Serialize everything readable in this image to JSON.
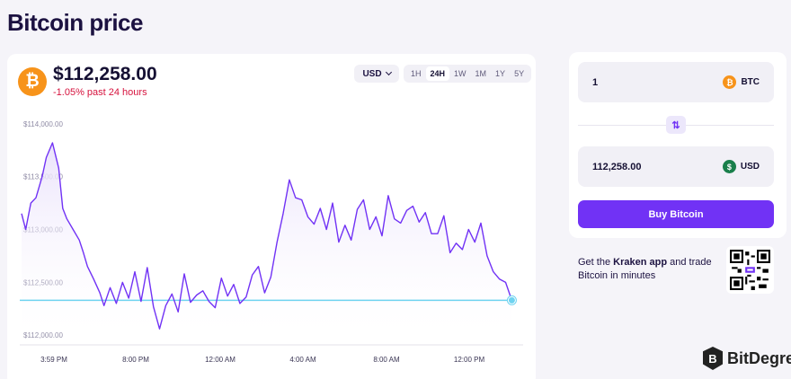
{
  "page": {
    "title": "Bitcoin price"
  },
  "ticker": {
    "coin_symbol_glyph": "₿",
    "price": "$112,258.00",
    "change": "-1.05% past 24 hours",
    "icon": "bitcoin-icon"
  },
  "controls": {
    "currency": "USD",
    "ranges": [
      "1H",
      "24H",
      "1W",
      "1M",
      "1Y",
      "5Y"
    ],
    "active_range": "24H"
  },
  "chart_data": {
    "type": "area",
    "y_tick_labels": [
      "$114,000.00",
      "$113,500.00",
      "$113,000.00",
      "$112,500.00",
      "$112,000.00"
    ],
    "y_ticks": [
      114000,
      113500,
      113000,
      112500,
      112000
    ],
    "ylim": [
      111900,
      114100
    ],
    "x_tick_labels": [
      "3:59 PM",
      "8:00 PM",
      "12:00 AM",
      "4:00 AM",
      "8:00 AM",
      "12:00 PM"
    ],
    "xlim": [
      0,
      24
    ],
    "reference_value": 112330,
    "line_color": "#7132f5",
    "fill_color": "#e9e1fb",
    "reference_color": "#6fd3f0",
    "series": [
      {
        "x": [
          0,
          0.2,
          0.45,
          0.7,
          1.0,
          1.2,
          1.5,
          1.8,
          2.0,
          2.2,
          2.5,
          2.8,
          3.0,
          3.2,
          3.5,
          3.8,
          4.0,
          4.3,
          4.6,
          4.9,
          5.2,
          5.5,
          5.8,
          6.1,
          6.4,
          6.7,
          7.0,
          7.3,
          7.6,
          7.9,
          8.2,
          8.5,
          8.8,
          9.1,
          9.4,
          9.7,
          10.0,
          10.3,
          10.6,
          10.9,
          11.2,
          11.5,
          11.8,
          12.1,
          12.4,
          12.7,
          13.0,
          13.3,
          13.6,
          13.9,
          14.2,
          14.5,
          14.8,
          15.1,
          15.4,
          15.7,
          16.0,
          16.3,
          16.6,
          16.9,
          17.2,
          17.5,
          17.8,
          18.1,
          18.4,
          18.7,
          19.0,
          19.3,
          19.6,
          19.9,
          20.2,
          20.5,
          20.8,
          21.1,
          21.4,
          21.7,
          22.0,
          22.3,
          22.6,
          22.9,
          23.2,
          23.5,
          23.8
        ],
        "y": [
          113150,
          113000,
          113250,
          113300,
          113500,
          113680,
          113820,
          113580,
          113200,
          113100,
          113000,
          112900,
          112780,
          112650,
          112530,
          112400,
          112280,
          112450,
          112300,
          112500,
          112350,
          112600,
          112320,
          112640,
          112270,
          112060,
          112280,
          112390,
          112220,
          112580,
          112310,
          112380,
          112420,
          112320,
          112260,
          112540,
          112370,
          112480,
          112300,
          112360,
          112570,
          112650,
          112400,
          112550,
          112880,
          113150,
          113470,
          113300,
          113280,
          113120,
          113050,
          113200,
          113000,
          113250,
          112880,
          113040,
          112900,
          113190,
          113280,
          113000,
          113120,
          112940,
          113320,
          113100,
          113060,
          113180,
          113220,
          113070,
          113160,
          112960,
          112960,
          113130,
          112780,
          112870,
          112810,
          113000,
          112880,
          113060,
          112750,
          112600,
          112530,
          112500,
          112330
        ]
      }
    ]
  },
  "converter": {
    "crypto_amount": "1",
    "crypto_asset": "BTC",
    "fiat_amount": "112,258.00",
    "fiat_asset": "USD",
    "swap_glyph": "⇅",
    "buy_label": "Buy Bitcoin"
  },
  "promo": {
    "prefix": "Get the ",
    "app_name": "Kraken app",
    "suffix": " and trade Bitcoin in minutes"
  },
  "watermark": {
    "text": "BitDegree",
    "logo_glyph": "B"
  }
}
